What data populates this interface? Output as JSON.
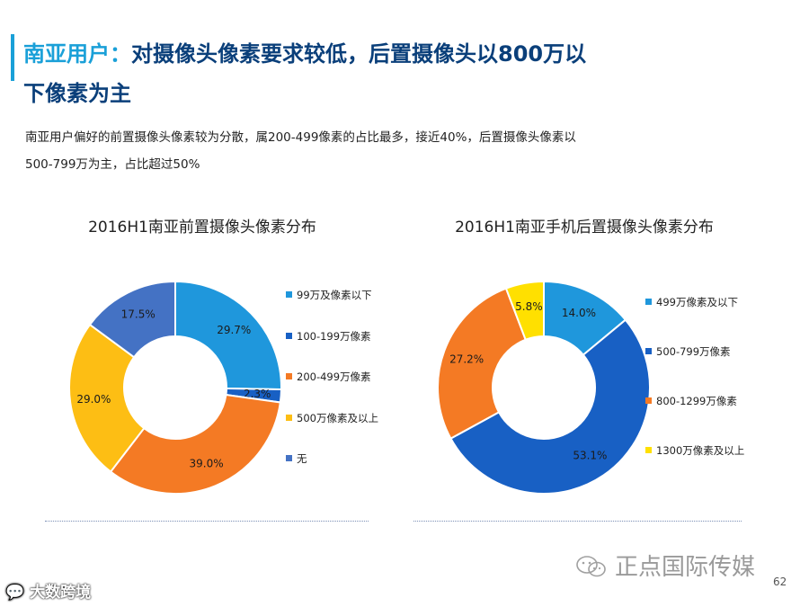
{
  "header": {
    "title_highlight": "南亚用户：",
    "title_line1_rest": "对摄像头像素要求较低，后置摄像头以800万以",
    "title_line2": "下像素为主"
  },
  "subtitle": {
    "line1": "南亚用户偏好的前置摄像头像素较为分散，属200-499像素的占比最多，接近40%，后置摄像头像素以",
    "line2": "500-799万为主，占比超过50%"
  },
  "footer": {
    "watermark_text": "正点国际传媒",
    "page_number": "62",
    "source_logo_text": "大数跨境"
  },
  "chart_data": [
    {
      "type": "pie",
      "title": "2016H1南亚前置摄像头像素分布",
      "categories": [
        "99万及像素以下",
        "100-199万像素",
        "200-499万像素",
        "500万像素及以上",
        "无"
      ],
      "values": [
        29.7,
        2.3,
        39.0,
        29.0,
        17.5
      ],
      "labels": [
        "29.7%",
        "2.3%",
        "39.0%",
        "29.0%",
        "17.5%"
      ],
      "colors": [
        "#1f97dc",
        "#1860c4",
        "#f47a24",
        "#fdbe14",
        "#4472c4"
      ],
      "donut": true,
      "legend": "right"
    },
    {
      "type": "pie",
      "title": "2016H1南亚手机后置摄像头像素分布",
      "categories": [
        "499万像素及以下",
        "500-799万像素",
        "800-1299万像素",
        "1300万像素及以上"
      ],
      "values": [
        14.0,
        53.1,
        27.2,
        5.8
      ],
      "labels": [
        "14.0%",
        "53.1%",
        "27.2%",
        "5.8%"
      ],
      "colors": [
        "#1f97dc",
        "#1860c4",
        "#f47a24",
        "#ffe000"
      ],
      "donut": true,
      "legend": "right"
    }
  ]
}
